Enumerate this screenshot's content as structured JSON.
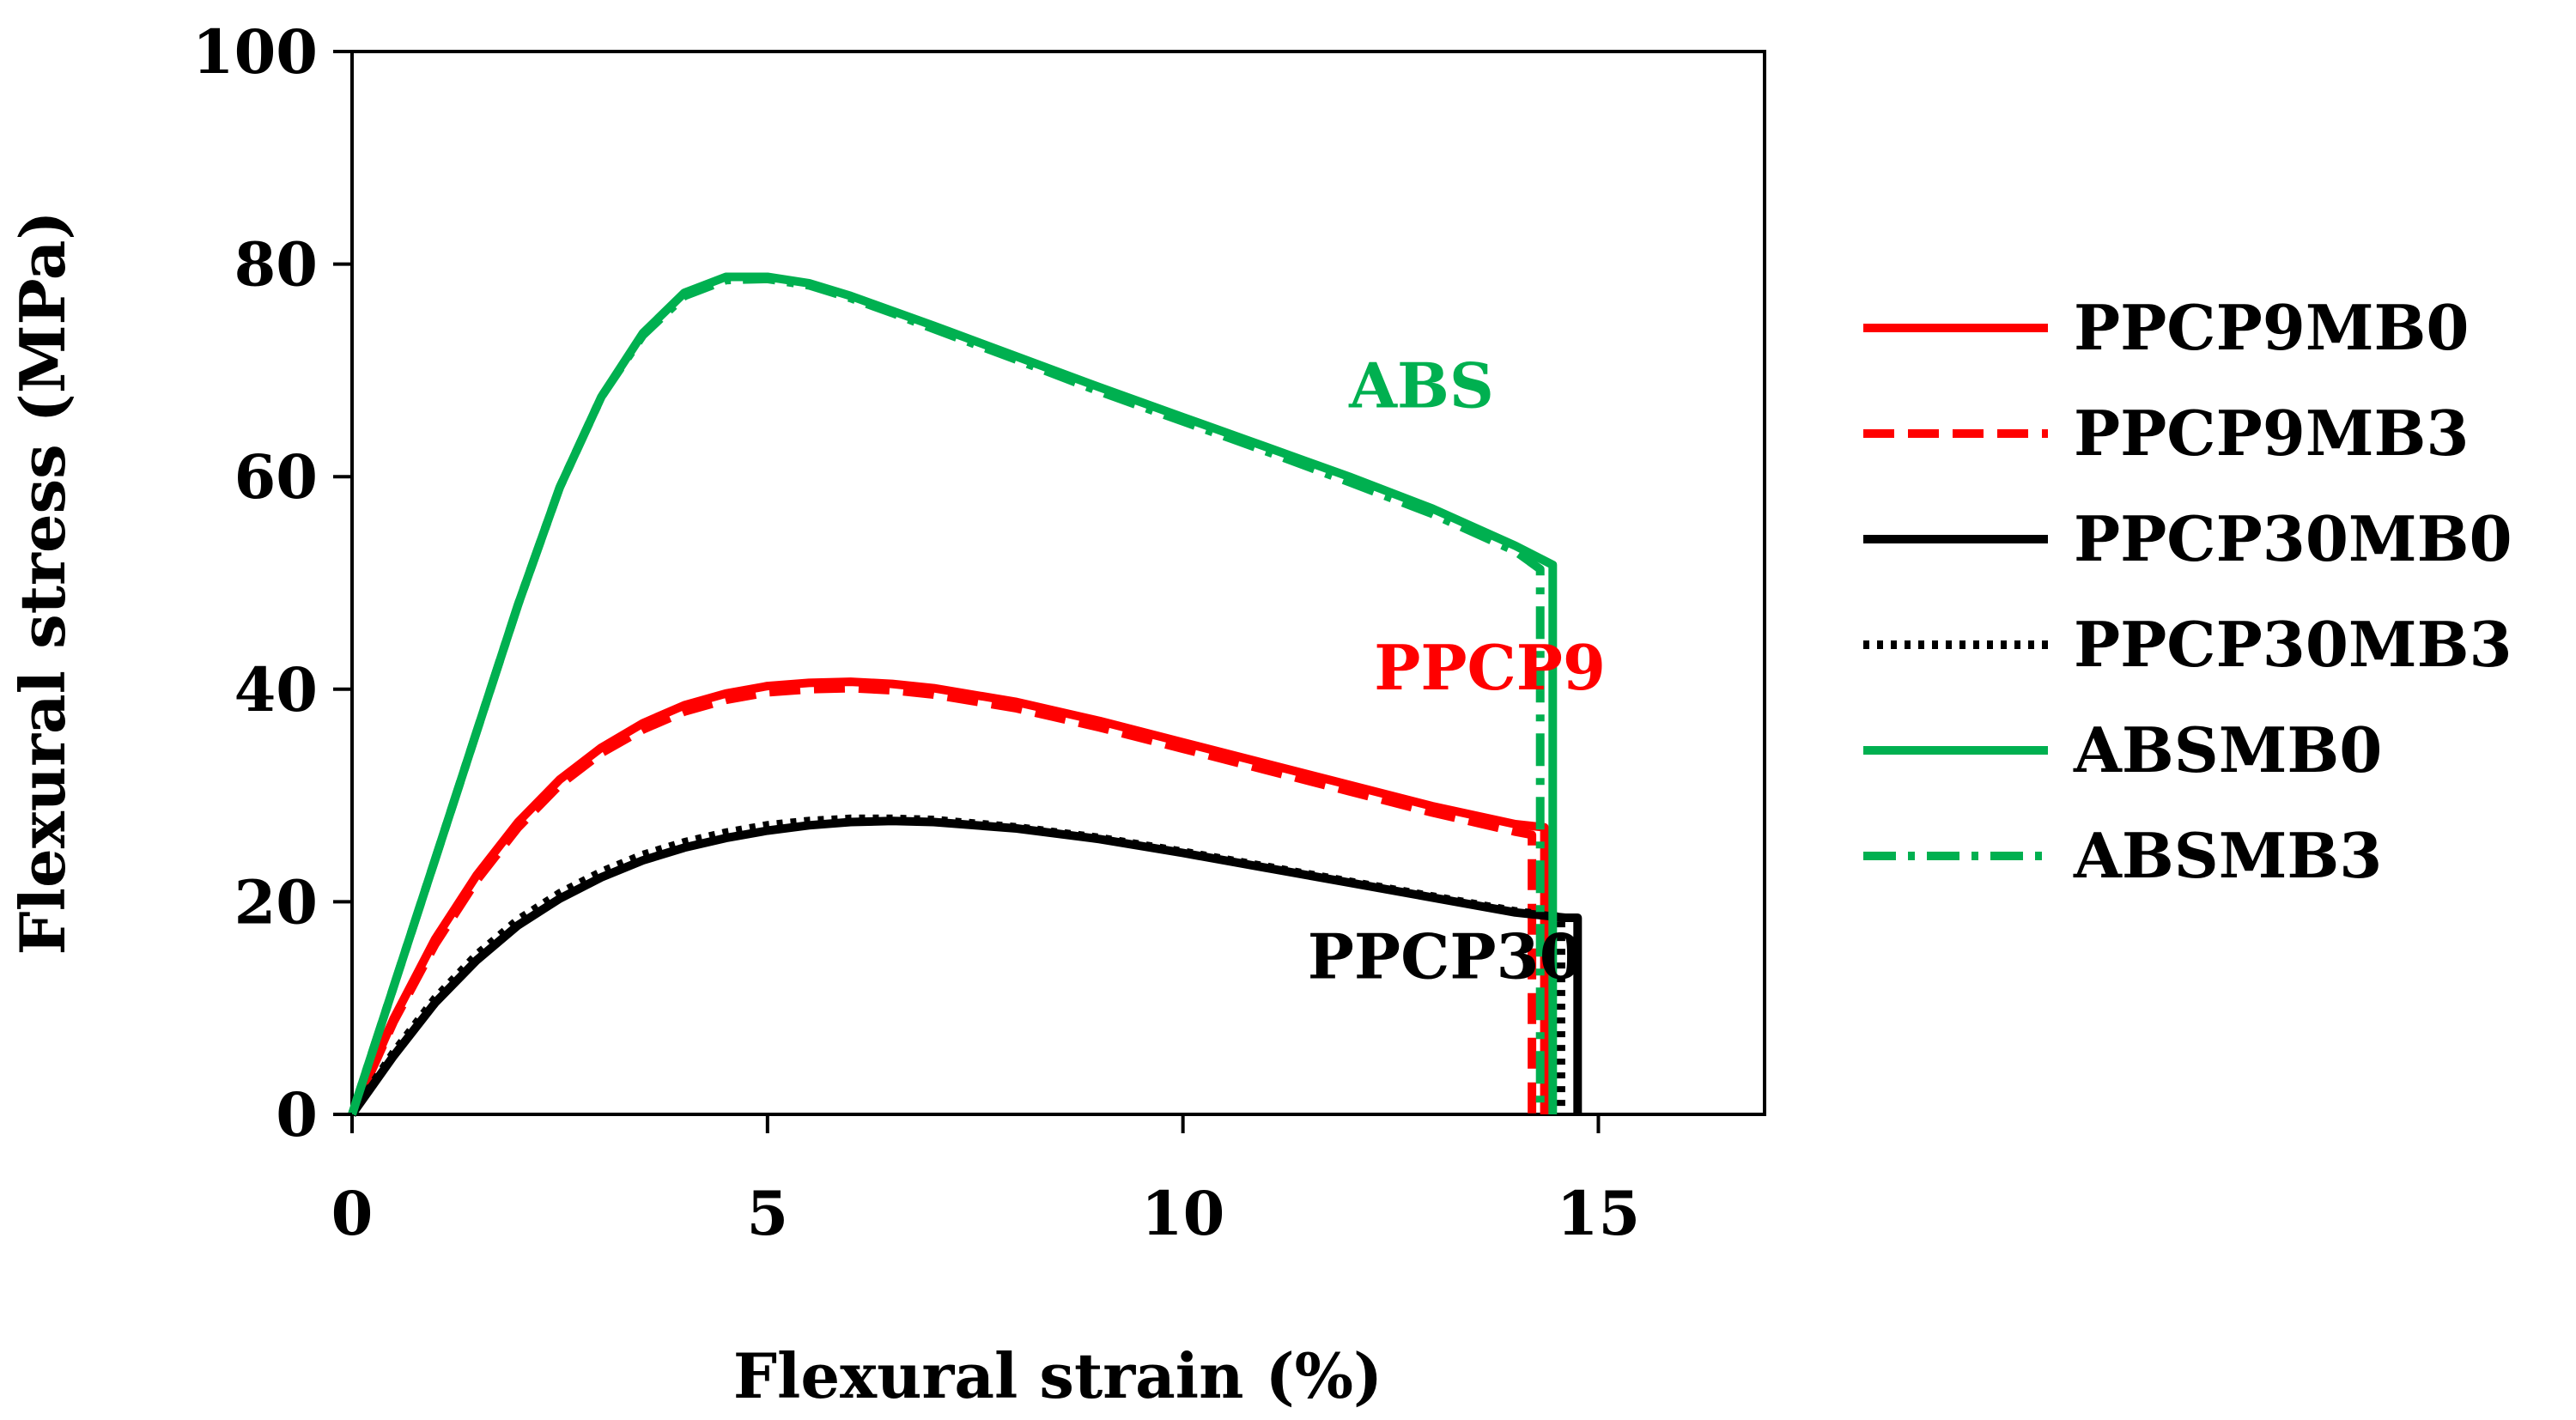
{
  "chart_data": {
    "type": "line",
    "title": "",
    "xlabel": "Flexural strain (%)",
    "ylabel": "Flexural stress (MPa)",
    "xlim": [
      0,
      17
    ],
    "ylim": [
      0,
      100
    ],
    "xticks": [
      0,
      5,
      10,
      15
    ],
    "yticks": [
      0,
      20,
      40,
      60,
      80,
      100
    ],
    "grid": false,
    "legend_position": "right",
    "series": [
      {
        "name": "PPCP9MB0",
        "color": "#ff0000",
        "dash": "solid",
        "x": [
          0,
          0.5,
          1,
          1.5,
          2,
          2.5,
          3,
          3.5,
          4,
          4.5,
          5,
          5.5,
          6,
          6.5,
          7,
          8,
          9,
          10,
          11,
          12,
          13,
          14,
          14.35,
          14.35
        ],
        "y": [
          0,
          9,
          16.5,
          22.5,
          27.5,
          31.5,
          34.5,
          36.8,
          38.5,
          39.6,
          40.3,
          40.6,
          40.7,
          40.5,
          40.1,
          38.8,
          37,
          35,
          33,
          31,
          29,
          27.3,
          27,
          0
        ]
      },
      {
        "name": "PPCP9MB3",
        "color": "#ff0000",
        "dash": "dashed",
        "x": [
          0,
          0.5,
          1,
          1.5,
          2,
          2.5,
          3,
          3.5,
          4,
          4.5,
          5,
          5.5,
          6,
          6.5,
          7,
          8,
          9,
          10,
          11,
          12,
          13,
          14,
          14.2,
          14.2
        ],
        "y": [
          0,
          8.7,
          16,
          22,
          27,
          31,
          34,
          36.2,
          37.9,
          39,
          39.7,
          40,
          40.1,
          39.9,
          39.5,
          38.2,
          36.4,
          34.4,
          32.4,
          30.4,
          28.4,
          26.6,
          26.3,
          0
        ]
      },
      {
        "name": "PPCP30MB0",
        "color": "#000000",
        "dash": "solid",
        "x": [
          0,
          0.5,
          1,
          1.5,
          2,
          2.5,
          3,
          3.5,
          4,
          4.5,
          5,
          5.5,
          6,
          6.5,
          7,
          8,
          9,
          10,
          11,
          12,
          13,
          14,
          14.6,
          14.75,
          14.75
        ],
        "y": [
          0,
          5.5,
          10.5,
          14.5,
          17.8,
          20.3,
          22.3,
          23.9,
          25.1,
          26,
          26.7,
          27.2,
          27.5,
          27.6,
          27.5,
          26.9,
          25.9,
          24.6,
          23.2,
          21.8,
          20.4,
          19,
          18.5,
          18.5,
          0
        ]
      },
      {
        "name": "PPCP30MB3",
        "color": "#000000",
        "dash": "dotted",
        "x": [
          0,
          0.5,
          1,
          1.5,
          2,
          2.5,
          3,
          3.5,
          4,
          4.5,
          5,
          5.5,
          6,
          6.5,
          7,
          8,
          9,
          10,
          11,
          12,
          13,
          14,
          14.5,
          14.55,
          14.55
        ],
        "y": [
          0,
          5.8,
          10.9,
          15,
          18.3,
          20.8,
          22.8,
          24.4,
          25.6,
          26.5,
          27.2,
          27.6,
          27.8,
          27.8,
          27.7,
          27,
          26,
          24.7,
          23.3,
          21.9,
          20.5,
          19.1,
          18.6,
          18.6,
          0
        ]
      },
      {
        "name": "ABSMB0",
        "color": "#00b050",
        "dash": "solid",
        "x": [
          0,
          0.5,
          1,
          1.5,
          2,
          2.5,
          3,
          3.5,
          4,
          4.5,
          5,
          5.5,
          6,
          6.5,
          7,
          8,
          9,
          10,
          11,
          12,
          13,
          14,
          14.45,
          14.45
        ],
        "y": [
          0,
          12,
          24,
          36,
          48,
          59,
          67.5,
          73.5,
          77.3,
          78.8,
          78.8,
          78.2,
          77,
          75.6,
          74.2,
          71.3,
          68.4,
          65.6,
          62.8,
          60,
          57,
          53.5,
          51.7,
          0
        ]
      },
      {
        "name": "ABSMB3",
        "color": "#00b050",
        "dash": "dashdot",
        "x": [
          0,
          0.5,
          1,
          1.5,
          2,
          2.5,
          3,
          3.5,
          4,
          4.5,
          5,
          5.5,
          6,
          6.5,
          7,
          8,
          9,
          10,
          11,
          12,
          13,
          14,
          14.3,
          14.3
        ],
        "y": [
          0,
          12,
          24,
          36,
          48,
          59,
          67.5,
          73.3,
          77,
          78.5,
          78.6,
          78,
          76.8,
          75.4,
          73.9,
          71,
          68,
          65.2,
          62.4,
          59.5,
          56.5,
          53,
          51.3,
          0
        ]
      }
    ],
    "annotations": [
      {
        "text": "ABS",
        "x": 12.0,
        "y": 66.5,
        "color": "#00b050"
      },
      {
        "text": "PPCP9",
        "x": 12.3,
        "y": 40.0,
        "color": "#ff0000"
      },
      {
        "text": "PPCP30",
        "x": 11.5,
        "y": 12.8,
        "color": "#000000"
      }
    ]
  }
}
